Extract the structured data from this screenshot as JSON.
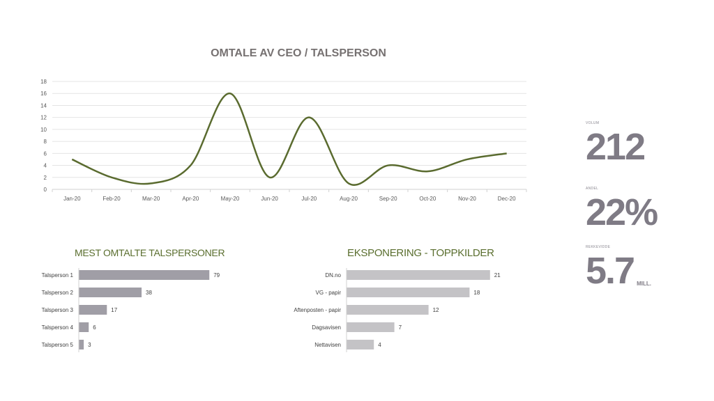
{
  "chart_data": [
    {
      "type": "line",
      "title": "OMTALE AV CEO / TALSPERSON",
      "categories": [
        "Jan-20",
        "Feb-20",
        "Mar-20",
        "Apr-20",
        "May-20",
        "Jun-20",
        "Jul-20",
        "Aug-20",
        "Sep-20",
        "Oct-20",
        "Nov-20",
        "Dec-20"
      ],
      "values": [
        5,
        2,
        1,
        4,
        16,
        2,
        12,
        1,
        4,
        3,
        5,
        6
      ],
      "ylim": [
        0,
        18
      ],
      "yticks": [
        0,
        2,
        4,
        6,
        8,
        10,
        12,
        14,
        16,
        18
      ],
      "grid": true,
      "color": "#5a6b2f"
    },
    {
      "type": "bar",
      "orientation": "horizontal",
      "title": "MEST OMTALTE TALSPERSONER",
      "categories": [
        "Talsperson 1",
        "Talsperson 2",
        "Talsperson 3",
        "Talsperson 4",
        "Talsperson 5"
      ],
      "values": [
        79,
        38,
        17,
        6,
        3
      ],
      "color": "#a09ea6"
    },
    {
      "type": "bar",
      "orientation": "horizontal",
      "title": "EKSPONERING - TOPPKILDER",
      "categories": [
        "DN.no",
        "VG - papir",
        "Aftenposten - papir",
        "Dagsavisen",
        "Nettavisen"
      ],
      "values": [
        21,
        18,
        12,
        7,
        4
      ],
      "color": "#c4c3c6"
    }
  ],
  "kpis": [
    {
      "label": "VOLUM",
      "value": "212",
      "unit": ""
    },
    {
      "label": "ANDEL",
      "value": "22%",
      "unit": ""
    },
    {
      "label": "REKKEVIDDE",
      "value": "5.7",
      "unit": "MILL."
    }
  ]
}
